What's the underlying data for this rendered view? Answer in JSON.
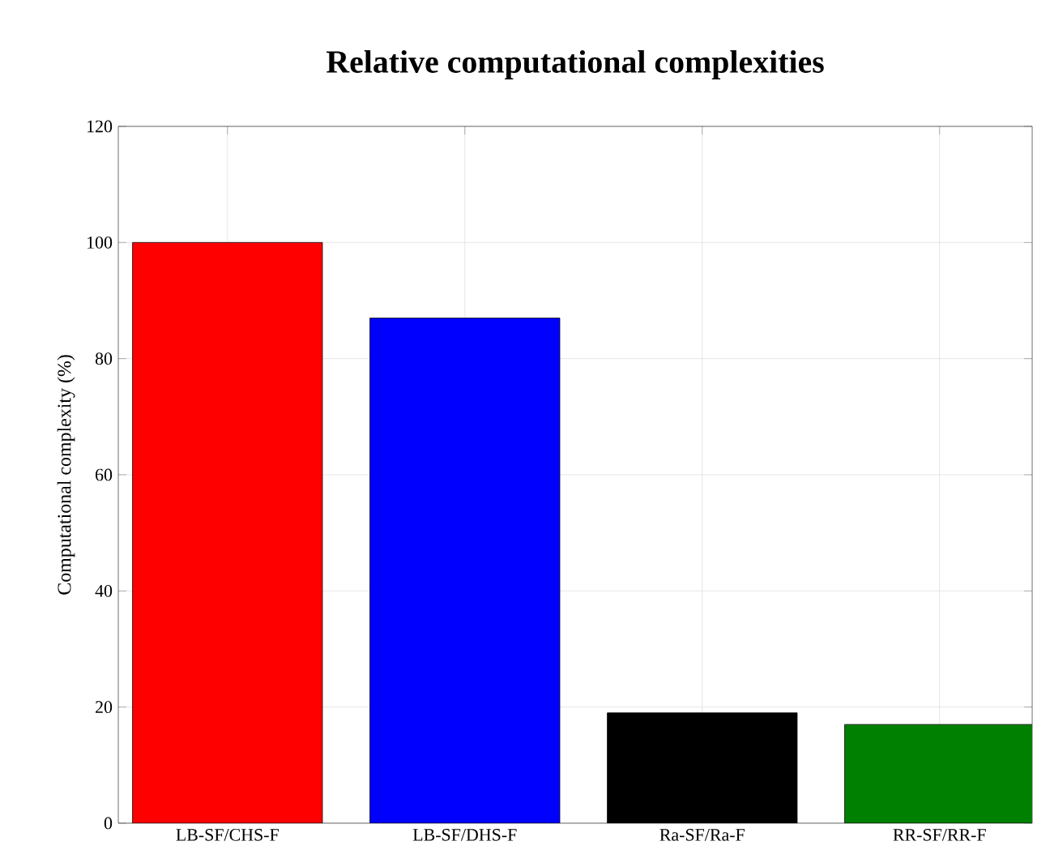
{
  "chart_data": {
    "type": "bar",
    "title": "Relative computational complexities",
    "ylabel": "Computational complexity (%)",
    "categories": [
      "LB-SF/CHS-F",
      "LB-SF/DHS-F",
      "Ra-SF/Ra-F",
      "RR-SF/RR-F"
    ],
    "values": [
      100,
      87,
      19,
      17
    ],
    "colors": [
      "#ff0000",
      "#0000ff",
      "#000000",
      "#008000"
    ],
    "ylim": [
      0,
      120
    ],
    "yticks": [
      0,
      20,
      40,
      60,
      80,
      100,
      120
    ],
    "grid": true
  }
}
